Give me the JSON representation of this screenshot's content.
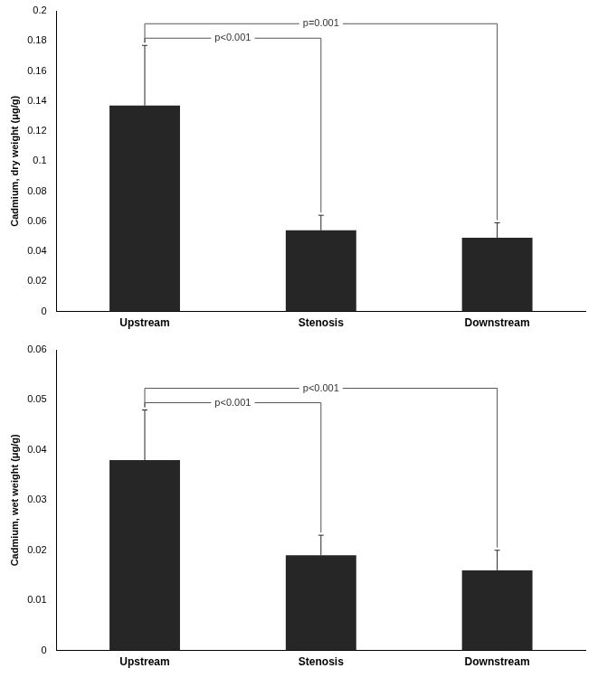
{
  "chart_data": [
    {
      "type": "bar",
      "ylabel": "Cadmium, dry weight (μg/g)",
      "categories": [
        "Upstream",
        "Stenosis",
        "Downstream"
      ],
      "values": [
        0.137,
        0.054,
        0.049
      ],
      "error": [
        0.04,
        0.01,
        0.01
      ],
      "color": "#262626",
      "ylim": [
        0,
        0.2
      ],
      "yticks": [
        0,
        0.02,
        0.04,
        0.06,
        0.08,
        0.1,
        0.12,
        0.14,
        0.16,
        0.18,
        0.2
      ],
      "grid": false,
      "annotations": [
        {
          "text": "p<0.001",
          "from": "Upstream",
          "to": "Stenosis"
        },
        {
          "text": "p=0.001",
          "from": "Upstream",
          "to": "Downstream"
        }
      ]
    },
    {
      "type": "bar",
      "ylabel": "Cadmium, wet weight (μg/g)",
      "categories": [
        "Upstream",
        "Stenosis",
        "Downstream"
      ],
      "values": [
        0.038,
        0.019,
        0.016
      ],
      "error": [
        0.01,
        0.004,
        0.004
      ],
      "color": "#262626",
      "ylim": [
        0,
        0.06
      ],
      "yticks": [
        0,
        0.01,
        0.02,
        0.03,
        0.04,
        0.05,
        0.06
      ],
      "grid": false,
      "annotations": [
        {
          "text": "p<0.001",
          "from": "Upstream",
          "to": "Stenosis"
        },
        {
          "text": "p<0.001",
          "from": "Upstream",
          "to": "Downstream"
        }
      ]
    }
  ]
}
